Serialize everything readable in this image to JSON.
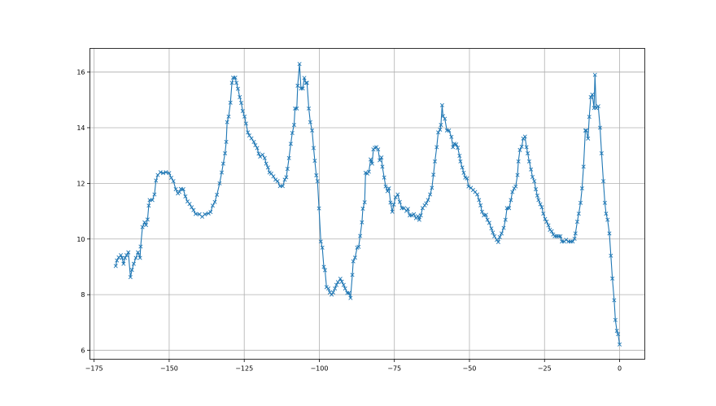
{
  "chart_data": {
    "type": "line",
    "title": "",
    "xlabel": "",
    "ylabel": "",
    "xlim": [
      -176.4,
      8.4
    ],
    "ylim": [
      5.68,
      16.85
    ],
    "grid": true,
    "marker": "x",
    "color": "#1f77b4",
    "xticks": [
      -175,
      -150,
      -125,
      -100,
      -75,
      -50,
      -25,
      0
    ],
    "xtick_labels": [
      "−175",
      "−150",
      "−125",
      "−100",
      "−75",
      "−50",
      "−25",
      "0"
    ],
    "yticks": [
      6,
      8,
      10,
      12,
      14,
      16
    ],
    "ytick_labels": [
      "6",
      "8",
      "10",
      "12",
      "14",
      "16"
    ],
    "series": [
      {
        "x": [
          -167.8,
          -167.4,
          -166.8,
          -166.1,
          -165.7,
          -165.2,
          -164.7,
          -164.2,
          -163.6,
          -162.9,
          -162.4,
          -161.8,
          -161.1,
          -160.4,
          -159.7,
          -159.5,
          -158.9,
          -158.2,
          -157.7,
          -157.2,
          -156.8,
          -156.5,
          -155.6,
          -154.9,
          -154.4,
          -153.8,
          -152.9,
          -152.0,
          -151.1,
          -150.0,
          -149.3,
          -148.6,
          -147.8,
          -147.1,
          -146.6,
          -146.1,
          -145.3,
          -144.6,
          -143.9,
          -143.2,
          -142.5,
          -141.9,
          -141.2,
          -139.9,
          -139.0,
          -138.1,
          -136.9,
          -136.2,
          -135.5,
          -134.8,
          -134.1,
          -133.2,
          -132.5,
          -132.0,
          -131.4,
          -131.0,
          -130.7,
          -130.2,
          -129.6,
          -129.1,
          -128.7,
          -128.0,
          -127.6,
          -127.1,
          -126.5,
          -126.0,
          -125.5,
          -124.9,
          -124.4,
          -123.8,
          -123.3,
          -122.6,
          -121.8,
          -121.3,
          -120.7,
          -120.2,
          -119.7,
          -118.9,
          -118.2,
          -117.7,
          -117.1,
          -116.6,
          -116.0,
          -115.3,
          -114.6,
          -113.9,
          -113.1,
          -112.2,
          -111.5,
          -111.0,
          -110.6,
          -110.1,
          -109.5,
          -109.0,
          -108.4,
          -108.1,
          -107.5,
          -107.2,
          -106.6,
          -106.1,
          -105.5,
          -105.0,
          -104.4,
          -104.1,
          -103.5,
          -103.0,
          -102.4,
          -101.9,
          -101.5,
          -101.0,
          -100.6,
          -100.1,
          -99.5,
          -99.0,
          -98.5,
          -98.1,
          -97.6,
          -97.0,
          -96.5,
          -95.9,
          -95.4,
          -94.8,
          -94.3,
          -93.8,
          -93.0,
          -92.5,
          -91.9,
          -91.4,
          -90.7,
          -90.1,
          -89.6,
          -89.0,
          -88.7,
          -88.1,
          -87.4,
          -86.9,
          -86.4,
          -85.8,
          -85.5,
          -84.9,
          -84.6,
          -84.0,
          -83.5,
          -82.9,
          -82.4,
          -82.0,
          -81.5,
          -81.0,
          -80.4,
          -79.9,
          -79.3,
          -79.0,
          -78.4,
          -77.9,
          -77.3,
          -76.8,
          -76.3,
          -75.7,
          -75.2,
          -74.6,
          -73.9,
          -73.2,
          -72.5,
          -71.8,
          -71.0,
          -70.5,
          -69.9,
          -69.2,
          -68.5,
          -67.8,
          -67.2,
          -66.7,
          -66.2,
          -65.6,
          -64.9,
          -64.4,
          -63.8,
          -63.1,
          -62.5,
          -62.0,
          -61.5,
          -60.9,
          -60.4,
          -59.8,
          -59.5,
          -59.1,
          -58.8,
          -58.2,
          -57.5,
          -56.8,
          -56.0,
          -55.5,
          -55.0,
          -54.4,
          -53.9,
          -53.3,
          -53.0,
          -52.4,
          -51.9,
          -51.4,
          -50.8,
          -50.3,
          -49.5,
          -48.8,
          -48.1,
          -47.4,
          -46.8,
          -46.3,
          -45.8,
          -45.2,
          -44.5,
          -44.0,
          -43.4,
          -42.7,
          -42.2,
          -41.7,
          -40.9,
          -40.4,
          -39.9,
          -39.3,
          -38.6,
          -38.0,
          -37.5,
          -36.8,
          -36.2,
          -35.7,
          -35.1,
          -34.6,
          -34.0,
          -33.7,
          -33.2,
          -32.6,
          -32.1,
          -31.5,
          -31.0,
          -30.6,
          -30.1,
          -29.5,
          -29.0,
          -28.4,
          -27.9,
          -27.4,
          -27.0,
          -26.4,
          -25.9,
          -25.4,
          -24.8,
          -24.3,
          -23.7,
          -23.2,
          -22.6,
          -22.1,
          -21.6,
          -21.0,
          -20.3,
          -19.7,
          -19.2,
          -18.5,
          -17.8,
          -17.0,
          -16.3,
          -15.6,
          -15.0,
          -14.7,
          -14.1,
          -13.6,
          -13.0,
          -12.5,
          -12.0,
          -11.4,
          -11.1,
          -10.5,
          -10.1,
          -9.6,
          -9.1,
          -8.5,
          -8.2,
          -7.8,
          -7.1,
          -6.5,
          -6.0,
          -5.4,
          -4.9,
          -4.5,
          -4.0,
          -3.4,
          -2.9,
          -2.4,
          -1.8,
          -1.4,
          -0.9,
          -0.5,
          0.0
        ],
        "y": [
          9.03,
          9.23,
          9.34,
          9.42,
          9.32,
          9.11,
          9.32,
          9.42,
          9.52,
          8.63,
          8.89,
          9.11,
          9.32,
          9.52,
          9.32,
          9.73,
          10.43,
          10.6,
          10.5,
          10.7,
          11.2,
          11.4,
          11.4,
          11.6,
          12.1,
          12.3,
          12.4,
          12.37,
          12.4,
          12.37,
          12.2,
          12.08,
          11.79,
          11.64,
          11.69,
          11.8,
          11.79,
          11.53,
          11.35,
          11.26,
          11.14,
          11.04,
          10.9,
          10.89,
          10.8,
          10.89,
          10.92,
          10.97,
          11.2,
          11.33,
          11.59,
          12.0,
          12.39,
          12.71,
          13.08,
          13.49,
          14.2,
          14.4,
          14.9,
          15.61,
          15.8,
          15.8,
          15.61,
          15.4,
          15.1,
          14.89,
          14.6,
          14.4,
          14.15,
          13.83,
          13.72,
          13.62,
          13.49,
          13.37,
          13.27,
          13.07,
          12.96,
          13.03,
          12.91,
          12.71,
          12.57,
          12.39,
          12.35,
          12.25,
          12.13,
          12.08,
          11.9,
          11.9,
          12.13,
          12.22,
          12.52,
          12.91,
          13.42,
          13.81,
          14.1,
          14.69,
          14.69,
          15.51,
          16.29,
          15.41,
          15.41,
          15.79,
          15.61,
          15.61,
          14.69,
          14.2,
          13.9,
          13.27,
          12.81,
          12.29,
          12.08,
          11.1,
          9.91,
          9.69,
          9.0,
          8.88,
          8.27,
          8.22,
          8.08,
          8.0,
          8.08,
          8.22,
          8.35,
          8.45,
          8.57,
          8.47,
          8.35,
          8.22,
          8.06,
          8.06,
          7.88,
          8.71,
          9.2,
          9.33,
          9.69,
          9.72,
          10.11,
          10.6,
          11.09,
          11.32,
          12.38,
          12.35,
          12.42,
          12.86,
          12.71,
          13.22,
          13.28,
          13.3,
          13.22,
          12.83,
          12.93,
          12.6,
          12.21,
          11.89,
          11.72,
          11.82,
          11.31,
          10.98,
          11.24,
          11.5,
          11.6,
          11.33,
          11.11,
          11.11,
          11.01,
          11.08,
          10.85,
          10.85,
          10.89,
          10.75,
          10.82,
          10.69,
          10.85,
          11.11,
          11.21,
          11.28,
          11.4,
          11.6,
          11.84,
          12.31,
          12.79,
          13.3,
          13.83,
          13.93,
          14.1,
          14.81,
          14.42,
          14.32,
          13.9,
          13.9,
          13.67,
          13.3,
          13.42,
          13.4,
          13.28,
          12.99,
          12.79,
          12.57,
          12.38,
          12.21,
          12.18,
          11.89,
          11.84,
          11.76,
          11.69,
          11.6,
          11.4,
          11.21,
          10.98,
          10.85,
          10.87,
          10.69,
          10.58,
          10.38,
          10.23,
          10.1,
          9.97,
          9.89,
          10.07,
          10.2,
          10.4,
          10.69,
          11.11,
          11.11,
          11.4,
          11.69,
          11.82,
          11.89,
          12.3,
          12.79,
          13.2,
          13.32,
          13.61,
          13.68,
          13.3,
          13.08,
          12.79,
          12.5,
          12.23,
          12.08,
          11.79,
          11.56,
          11.4,
          11.25,
          11.14,
          10.91,
          10.72,
          10.62,
          10.49,
          10.33,
          10.28,
          10.16,
          10.1,
          10.1,
          10.1,
          10.1,
          9.91,
          9.91,
          9.97,
          9.91,
          9.91,
          9.91,
          10.01,
          10.2,
          10.62,
          10.91,
          11.3,
          11.82,
          12.6,
          13.9,
          13.9,
          13.61,
          14.39,
          15.1,
          15.19,
          14.71,
          15.9,
          14.71,
          14.77,
          14.0,
          13.08,
          12.08,
          11.3,
          10.91,
          10.69,
          10.2,
          9.4,
          8.58,
          7.8,
          7.09,
          6.7,
          6.58,
          6.21
        ]
      }
    ]
  }
}
